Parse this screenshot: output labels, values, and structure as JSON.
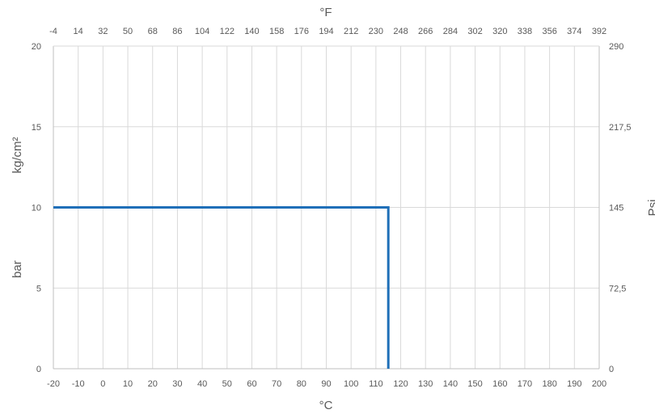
{
  "chart_data": {
    "type": "line",
    "title": "",
    "xlabel": "°C",
    "x2label": "°F",
    "ylabel_left_top": "kg/cm²",
    "ylabel_left_bottom": "bar",
    "ylabel_right": "Psi",
    "xlim": [
      -20,
      200
    ],
    "ylim": [
      0,
      20
    ],
    "grid": true,
    "x_ticks": [
      -20,
      -10,
      0,
      10,
      20,
      30,
      40,
      50,
      60,
      70,
      80,
      90,
      100,
      110,
      120,
      130,
      140,
      150,
      160,
      170,
      180,
      190,
      200
    ],
    "x2_ticks": [
      "-4",
      "14",
      "32",
      "50",
      "68",
      "86",
      "104",
      "122",
      "140",
      "158",
      "176",
      "194",
      "212",
      "230",
      "248",
      "266",
      "284",
      "302",
      "320",
      "338",
      "356",
      "374",
      "392"
    ],
    "y_ticks": [
      0,
      5,
      10,
      15,
      20
    ],
    "y2_ticks": [
      "0",
      "72,5",
      "145",
      "217,5",
      "290"
    ],
    "colors": {
      "series": "#1f6fb8",
      "grid": "#d9d9d9",
      "axis": "#bfbfbf",
      "text": "#595959"
    },
    "series": [
      {
        "x": [
          -20,
          115,
          115
        ],
        "y": [
          10,
          10,
          0
        ]
      }
    ]
  }
}
